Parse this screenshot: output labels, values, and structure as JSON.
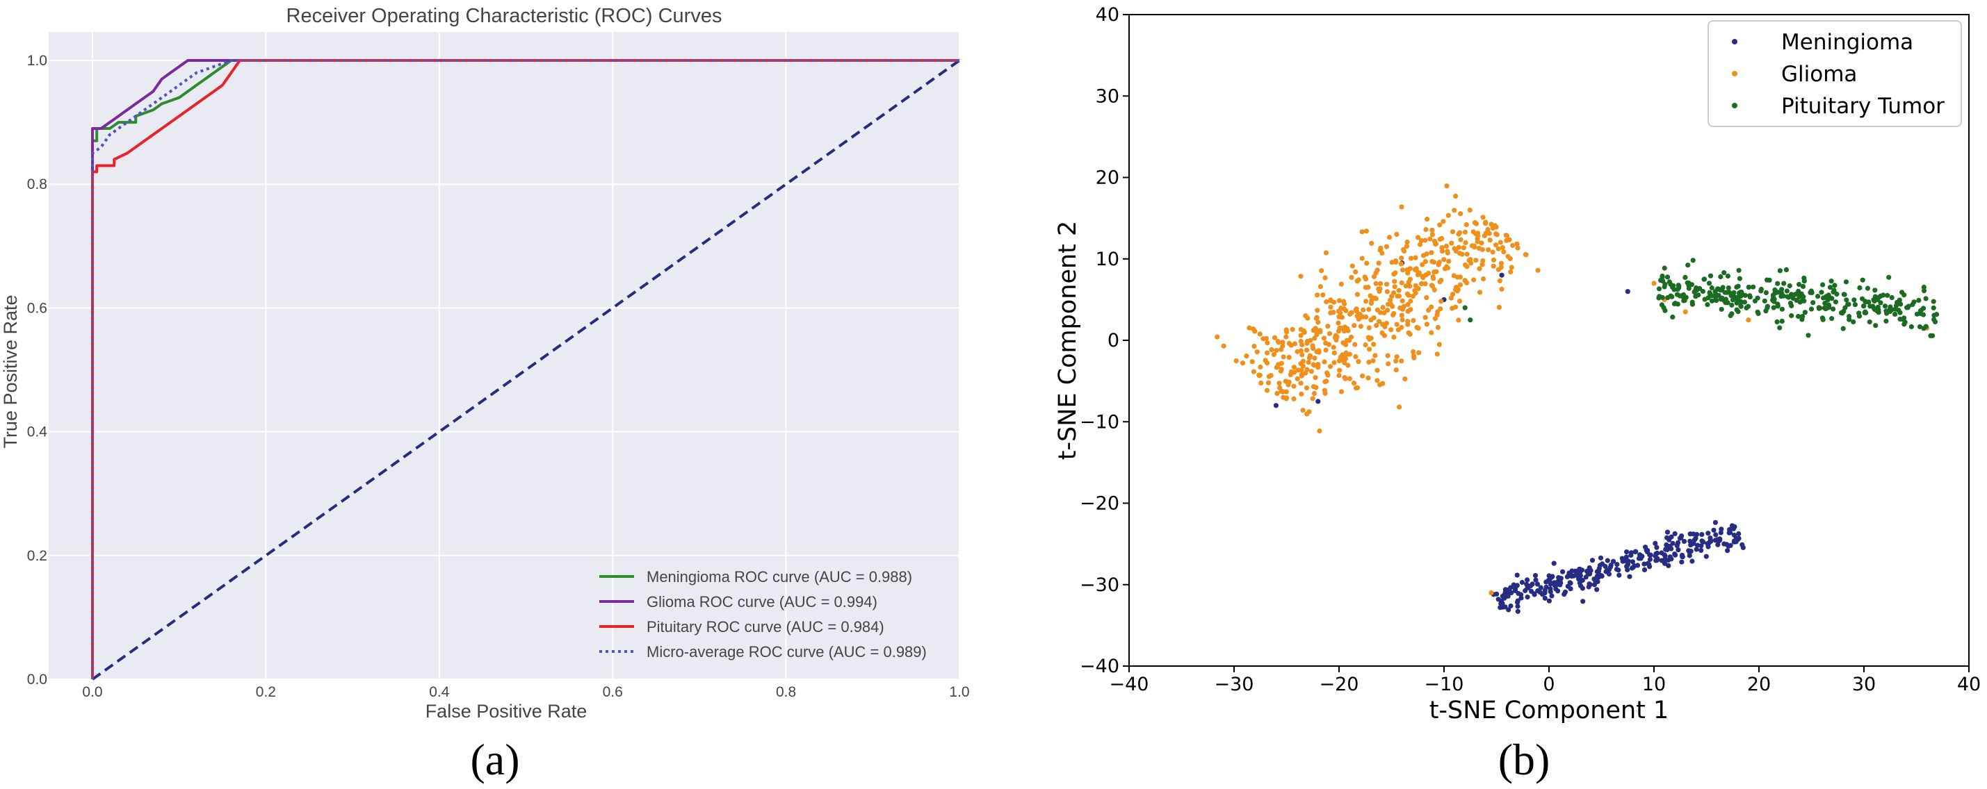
{
  "chart_data": [
    {
      "type": "line",
      "title": "Receiver Operating Characteristic (ROC) Curves",
      "xlabel": "False Positive Rate",
      "ylabel": "True Positive Rate",
      "xlim": [
        0.0,
        1.0
      ],
      "ylim": [
        0.0,
        1.0
      ],
      "xticks": [
        "0.0",
        "0.2",
        "0.4",
        "0.6",
        "0.8",
        "1.0"
      ],
      "yticks": [
        "0.0",
        "0.2",
        "0.4",
        "0.6",
        "0.8",
        "1.0"
      ],
      "grid": true,
      "legend_position": "lower-right",
      "caption": "(a)",
      "series": [
        {
          "name": "Meningioma ROC curve (AUC = 0.988)",
          "color": "#2e8b2e",
          "style": "solid",
          "x": [
            0.0,
            0.0,
            0.0,
            0.005,
            0.005,
            0.02,
            0.03,
            0.05,
            0.05,
            0.07,
            0.08,
            0.1,
            0.11,
            0.12,
            0.13,
            0.14,
            0.15,
            0.16,
            0.17,
            1.0
          ],
          "y": [
            0.0,
            0.82,
            0.87,
            0.87,
            0.89,
            0.89,
            0.9,
            0.9,
            0.91,
            0.92,
            0.93,
            0.94,
            0.95,
            0.96,
            0.97,
            0.98,
            0.99,
            1.0,
            1.0,
            1.0
          ]
        },
        {
          "name": "Glioma ROC curve (AUC = 0.994)",
          "color": "#7b2aa0",
          "style": "solid",
          "x": [
            0.0,
            0.0,
            0.0,
            0.01,
            0.02,
            0.03,
            0.04,
            0.05,
            0.06,
            0.07,
            0.08,
            0.09,
            0.1,
            0.11,
            0.16,
            1.0
          ],
          "y": [
            0.0,
            0.82,
            0.89,
            0.89,
            0.9,
            0.91,
            0.92,
            0.93,
            0.94,
            0.95,
            0.97,
            0.98,
            0.99,
            1.0,
            1.0,
            1.0
          ]
        },
        {
          "name": "Pituitary ROC curve (AUC = 0.984)",
          "color": "#e8242a",
          "style": "solid",
          "x": [
            0.0,
            0.0,
            0.005,
            0.005,
            0.025,
            0.025,
            0.04,
            0.05,
            0.06,
            0.07,
            0.08,
            0.09,
            0.1,
            0.11,
            0.12,
            0.13,
            0.14,
            0.15,
            0.16,
            0.17,
            1.0
          ],
          "y": [
            0.0,
            0.82,
            0.82,
            0.83,
            0.83,
            0.84,
            0.85,
            0.86,
            0.87,
            0.88,
            0.89,
            0.9,
            0.91,
            0.92,
            0.93,
            0.94,
            0.95,
            0.96,
            0.98,
            1.0,
            1.0
          ]
        },
        {
          "name": "Micro-average ROC curve (AUC = 0.989)",
          "color": "#4a55c8",
          "style": "dotted",
          "x": [
            0.0,
            0.0,
            0.0,
            0.01,
            0.02,
            0.04,
            0.06,
            0.08,
            0.1,
            0.12,
            0.14,
            0.16,
            1.0
          ],
          "y": [
            0.0,
            0.82,
            0.85,
            0.86,
            0.88,
            0.9,
            0.92,
            0.94,
            0.96,
            0.98,
            0.99,
            1.0,
            1.0
          ]
        },
        {
          "name": "",
          "color": "#262d7c",
          "style": "dashed",
          "x": [
            0.0,
            1.0
          ],
          "y": [
            0.0,
            1.0
          ]
        }
      ]
    },
    {
      "type": "scatter",
      "title": "",
      "xlabel": "t-SNE Component 1",
      "ylabel": "t-SNE Component 2",
      "xlim": [
        -40,
        40
      ],
      "ylim": [
        -40,
        40
      ],
      "xticks": [
        "−40",
        "−30",
        "−20",
        "−10",
        "0",
        "10",
        "20",
        "30",
        "40"
      ],
      "yticks": [
        "−40",
        "−30",
        "−20",
        "−10",
        "0",
        "10",
        "20",
        "30",
        "40"
      ],
      "grid": false,
      "legend_position": "top-right",
      "caption": "(b)",
      "series": [
        {
          "name": "Meningioma",
          "color": "#262d82",
          "clusters": [
            {
              "from": [
                -5,
                -32
              ],
              "to": [
                18,
                -23.5
              ],
              "count": 300,
              "spread": 0.9
            }
          ],
          "points": [
            [
              -14,
              9.5
            ],
            [
              -4.5,
              8
            ],
            [
              -26,
              -8
            ],
            [
              -22,
              -7.5
            ],
            [
              -10,
              5
            ],
            [
              7.5,
              6
            ]
          ]
        },
        {
          "name": "Glioma",
          "color": "#f0901c",
          "clusters": [
            {
              "from": [
                -27,
                -6
              ],
              "to": [
                -5,
                14
              ],
              "count": 560,
              "spread": 3.1
            }
          ],
          "points": [
            [
              10,
              7
            ],
            [
              11,
              5
            ],
            [
              13,
              3.5
            ],
            [
              19,
              2.5
            ],
            [
              36,
              1.5
            ],
            [
              -5.5,
              -31
            ]
          ]
        },
        {
          "name": "Pituitary Tumor",
          "color": "#1b6b23",
          "clusters": [
            {
              "from": [
                10.5,
                6.5
              ],
              "to": [
                37,
                3.5
              ],
              "count": 340,
              "spread": 1.3
            }
          ],
          "points": [
            [
              -8,
              4
            ],
            [
              -7.5,
              2.5
            ]
          ]
        }
      ]
    }
  ]
}
